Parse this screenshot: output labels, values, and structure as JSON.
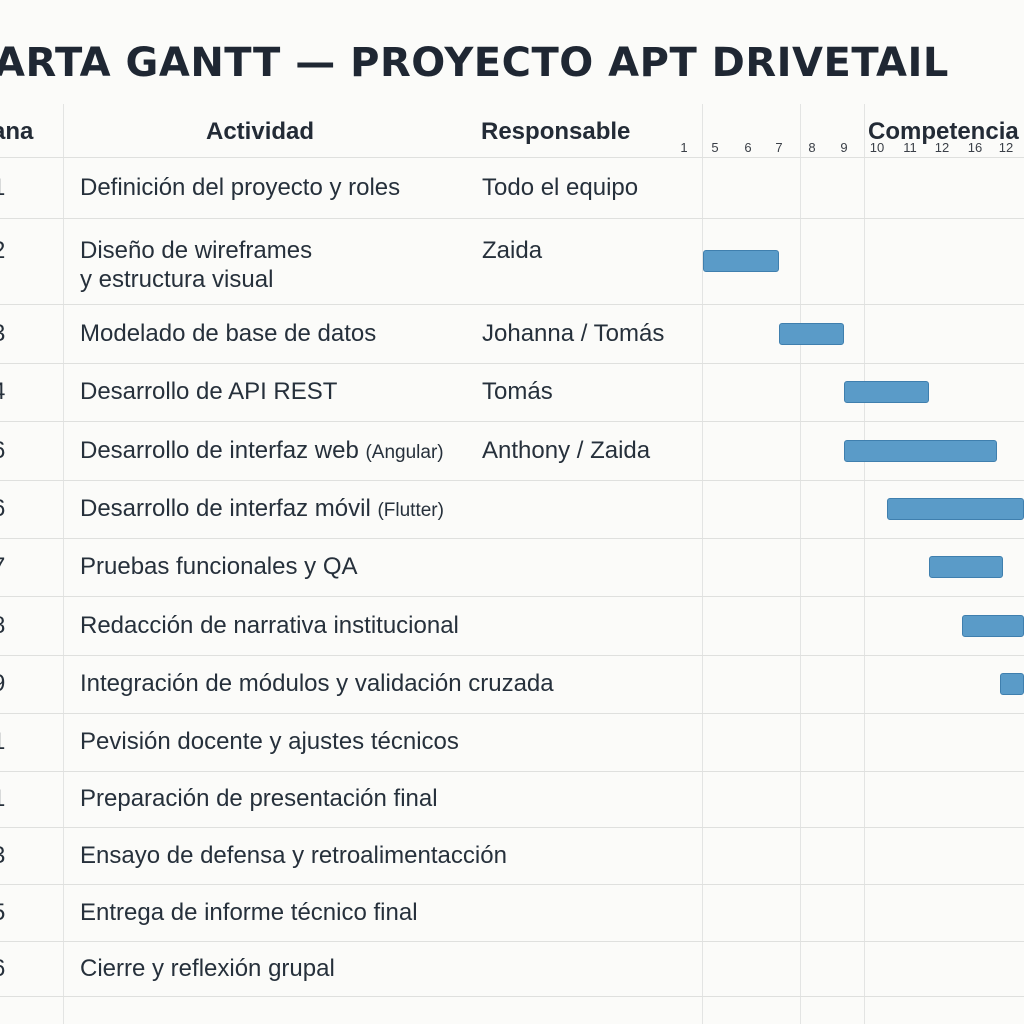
{
  "title": "ARTA GANTT — PROYECTO APT DRIVETAIL",
  "headers": {
    "number": "ana",
    "activity": "Actividad",
    "responsible": "Responsable",
    "competencies": "Competencia"
  },
  "week_ticks": [
    "1",
    "5",
    "6",
    "7",
    "8",
    "9",
    "10",
    "11",
    "12",
    "16",
    "12"
  ],
  "rows": [
    {
      "num": "1",
      "activity": "Definición del proyecto y roles",
      "activity_note": "",
      "activity_line2": "",
      "responsible": "Todo el equipo"
    },
    {
      "num": "2",
      "activity": "Diseño de wireframes",
      "activity_note": "",
      "activity_line2": "y estructura visual",
      "responsible": "Zaida"
    },
    {
      "num": "3",
      "activity": "Modelado de base de datos",
      "activity_note": "",
      "activity_line2": "",
      "responsible": "Johanna / Tomás"
    },
    {
      "num": "4",
      "activity": "Desarrollo de API REST",
      "activity_note": "",
      "activity_line2": "",
      "responsible": "Tomás"
    },
    {
      "num": "6",
      "activity": "Desarrollo de interfaz web ",
      "activity_note": "(Angular)",
      "activity_line2": "",
      "responsible": "Anthony / Zaida"
    },
    {
      "num": "6",
      "activity": "Desarrollo de interfaz móvil ",
      "activity_note": "(Flutter)",
      "activity_line2": "",
      "responsible": ""
    },
    {
      "num": "7",
      "activity": "Pruebas funcionales y QA",
      "activity_note": "",
      "activity_line2": "",
      "responsible": ""
    },
    {
      "num": "8",
      "activity": "Redacción de narrativa institucional",
      "activity_note": "",
      "activity_line2": "",
      "responsible": ""
    },
    {
      "num": "9",
      "activity": "Integración de módulos y validación cruzada",
      "activity_note": "",
      "activity_line2": "",
      "responsible": ""
    },
    {
      "num": "1",
      "activity": "Pevisión docente y ajustes técnicos",
      "activity_note": "",
      "activity_line2": "",
      "responsible": ""
    },
    {
      "num": "1",
      "activity": "Preparación de presentación final",
      "activity_note": "",
      "activity_line2": "",
      "responsible": ""
    },
    {
      "num": "3",
      "activity": "Ensayo de defensa y retroalimentacción",
      "activity_note": "",
      "activity_line2": "",
      "responsible": ""
    },
    {
      "num": "5",
      "activity": "Entrega de informe técnico final",
      "activity_note": "",
      "activity_line2": "",
      "responsible": ""
    },
    {
      "num": "6",
      "activity": "Cierre y reflexión grupal",
      "activity_note": "",
      "activity_line2": "",
      "responsible": ""
    }
  ],
  "bars": [
    {
      "row": 1,
      "start": 1,
      "end": 7
    },
    {
      "row": 2,
      "start": 7,
      "end": 9
    },
    {
      "row": 3,
      "start": 9,
      "end": 11.6
    },
    {
      "row": 4,
      "start": 9,
      "end": 13.7
    },
    {
      "row": 5,
      "start": 10.3,
      "end": 16
    },
    {
      "row": 6,
      "start": 11.6,
      "end": 13.9
    },
    {
      "row": 7,
      "start": 12.6,
      "end": 16
    },
    {
      "row": 8,
      "start": 13.8,
      "end": 16
    }
  ],
  "colors": {
    "bar": "#5a9bc8",
    "bar_border": "#3f7fae",
    "grid": "#dfe0de"
  }
}
